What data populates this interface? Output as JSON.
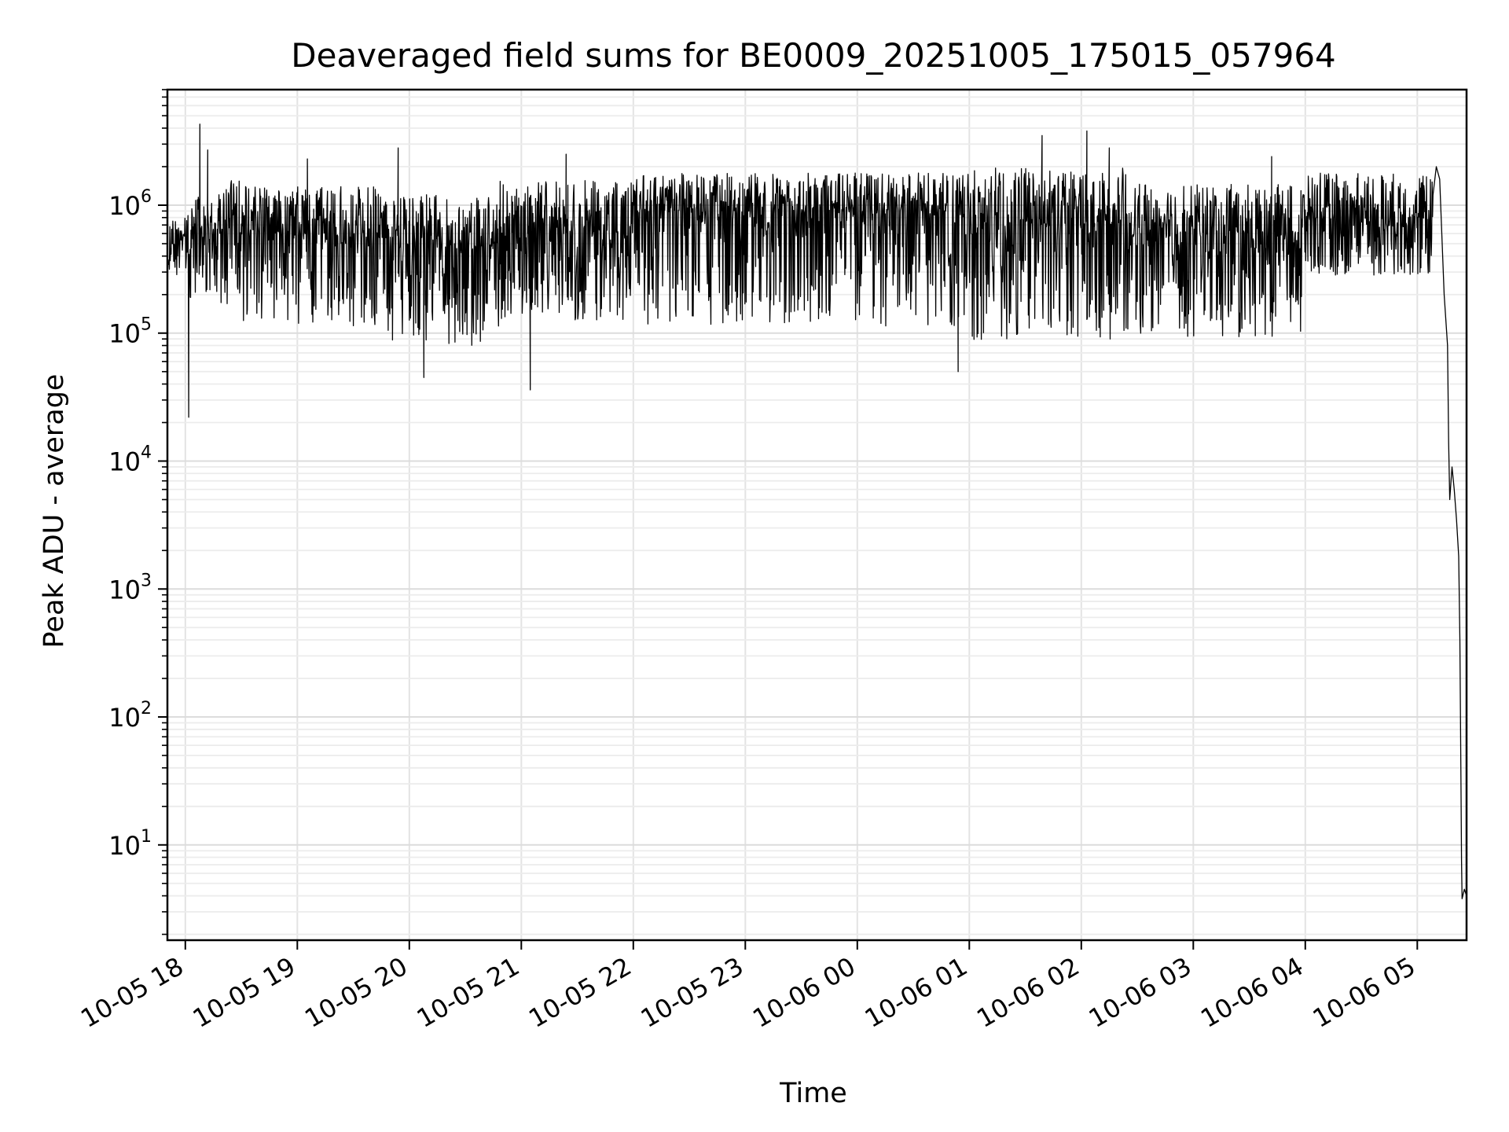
{
  "chart_data": {
    "type": "line",
    "title": "Deaveraged field sums for BE0009_20251005_175015_057964",
    "xlabel": "Time",
    "ylabel": "Peak ADU - average",
    "yscale": "log",
    "ylim": [
      1.8,
      8000000
    ],
    "xlim_hours": [
      -0.16,
      11.44
    ],
    "x_unit": "hours since 10-05 18:00",
    "grid": true,
    "line_color": "#000000",
    "x_ticks": [
      {
        "label": "10-05 18",
        "hours": 0
      },
      {
        "label": "10-05 19",
        "hours": 1
      },
      {
        "label": "10-05 20",
        "hours": 2
      },
      {
        "label": "10-05 21",
        "hours": 3
      },
      {
        "label": "10-05 22",
        "hours": 4
      },
      {
        "label": "10-05 23",
        "hours": 5
      },
      {
        "label": "10-06 00",
        "hours": 6
      },
      {
        "label": "10-06 01",
        "hours": 7
      },
      {
        "label": "10-06 02",
        "hours": 8
      },
      {
        "label": "10-06 03",
        "hours": 9
      },
      {
        "label": "10-06 04",
        "hours": 10
      },
      {
        "label": "10-06 05",
        "hours": 11
      }
    ],
    "y_ticks": [
      {
        "base": "10",
        "exp": "1",
        "value": 10
      },
      {
        "base": "10",
        "exp": "2",
        "value": 100
      },
      {
        "base": "10",
        "exp": "3",
        "value": 1000
      },
      {
        "base": "10",
        "exp": "4",
        "value": 10000
      },
      {
        "base": "10",
        "exp": "5",
        "value": 100000
      },
      {
        "base": "10",
        "exp": "6",
        "value": 1000000
      }
    ],
    "series": [
      {
        "name": "Deaveraged field sum",
        "segments": [
          {
            "x_start": -0.15,
            "x_end": 0.02,
            "median": 500000,
            "lo_exp": 0.25,
            "hi_exp": 0.2
          },
          {
            "x_start": 0.02,
            "x_end": 0.3,
            "median": 600000,
            "lo_exp": 0.5,
            "hi_exp": 0.3
          },
          {
            "x_start": 0.3,
            "x_end": 1.0,
            "median": 620000,
            "lo_exp": 0.7,
            "hi_exp": 0.4
          },
          {
            "x_start": 1.0,
            "x_end": 1.8,
            "median": 560000,
            "lo_exp": 0.7,
            "hi_exp": 0.4
          },
          {
            "x_start": 1.8,
            "x_end": 2.8,
            "median": 480000,
            "lo_exp": 0.8,
            "hi_exp": 0.4
          },
          {
            "x_start": 2.8,
            "x_end": 4.0,
            "median": 620000,
            "lo_exp": 0.7,
            "hi_exp": 0.4
          },
          {
            "x_start": 4.0,
            "x_end": 7.0,
            "median": 900000,
            "lo_exp": 0.9,
            "hi_exp": 0.3
          },
          {
            "x_start": 7.0,
            "x_end": 8.4,
            "median": 700000,
            "lo_exp": 0.9,
            "hi_exp": 0.45
          },
          {
            "x_start": 8.4,
            "x_end": 10.0,
            "median": 580000,
            "lo_exp": 0.8,
            "hi_exp": 0.4
          },
          {
            "x_start": 10.0,
            "x_end": 11.14,
            "median": 800000,
            "lo_exp": 0.45,
            "hi_exp": 0.35
          }
        ],
        "spikes": [
          {
            "x": 0.03,
            "y": 22000
          },
          {
            "x": 0.13,
            "y": 4300000
          },
          {
            "x": 0.2,
            "y": 2700000
          },
          {
            "x": 1.09,
            "y": 2300000
          },
          {
            "x": 1.9,
            "y": 2800000
          },
          {
            "x": 2.13,
            "y": 45000
          },
          {
            "x": 3.08,
            "y": 36000
          },
          {
            "x": 3.4,
            "y": 2500000
          },
          {
            "x": 7.65,
            "y": 3500000
          },
          {
            "x": 8.05,
            "y": 3800000
          },
          {
            "x": 8.25,
            "y": 2800000
          },
          {
            "x": 9.7,
            "y": 2400000
          },
          {
            "x": 6.9,
            "y": 50000
          }
        ],
        "tail": [
          {
            "x": 11.14,
            "y": 1200000
          },
          {
            "x": 11.17,
            "y": 2000000
          },
          {
            "x": 11.2,
            "y": 1600000
          },
          {
            "x": 11.24,
            "y": 200000
          },
          {
            "x": 11.27,
            "y": 80000
          },
          {
            "x": 11.28,
            "y": 14000
          },
          {
            "x": 11.29,
            "y": 5000
          },
          {
            "x": 11.31,
            "y": 9000
          },
          {
            "x": 11.33,
            "y": 6000
          },
          {
            "x": 11.35,
            "y": 3500
          },
          {
            "x": 11.37,
            "y": 1800
          },
          {
            "x": 11.38,
            "y": 400
          },
          {
            "x": 11.39,
            "y": 30
          },
          {
            "x": 11.395,
            "y": 7.5
          },
          {
            "x": 11.4,
            "y": 3.8
          },
          {
            "x": 11.42,
            "y": 4.5
          },
          {
            "x": 11.44,
            "y": 4.0
          }
        ]
      }
    ]
  }
}
